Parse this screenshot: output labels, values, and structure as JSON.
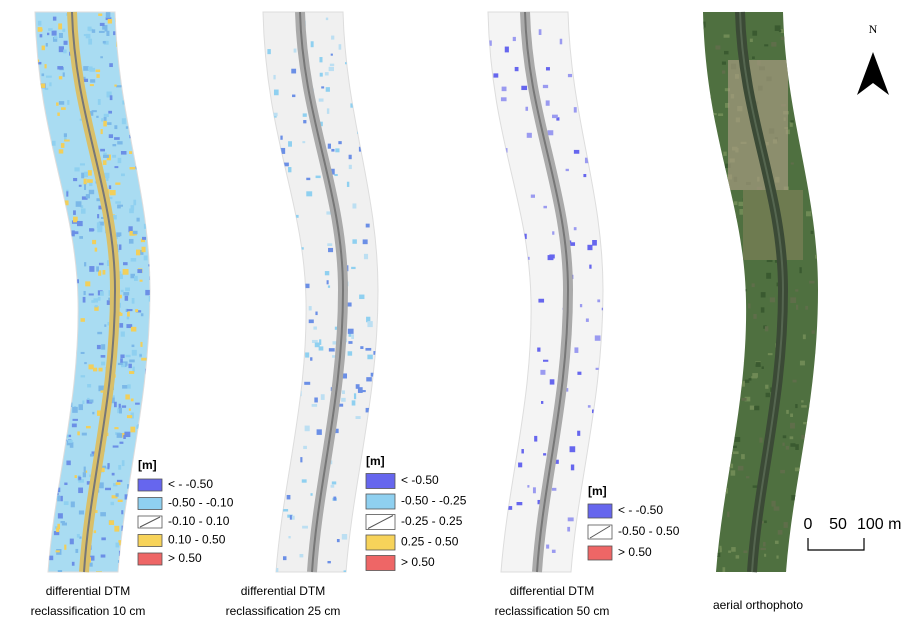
{
  "panels": [
    {
      "caption": [
        "differential DTM",
        "reclassification 10 cm"
      ],
      "legend": {
        "title": "[m]",
        "items": [
          {
            "label": "< - -0.50",
            "color": "#6666ee"
          },
          {
            "label": "-0.50 - -0.10",
            "color": "#8fd0f0"
          },
          {
            "label": "-0.10 - 0.10",
            "color": "#ffffff"
          },
          {
            "label": "0.10 - 0.50",
            "color": "#f7d35a"
          },
          {
            "label": "> 0.50",
            "color": "#ee6666"
          }
        ]
      }
    },
    {
      "caption": [
        "differential DTM",
        "reclassification 25 cm"
      ],
      "legend": {
        "title": "[m]",
        "items": [
          {
            "label": "< -0.50",
            "color": "#6666ee"
          },
          {
            "label": "-0.50 - -0.25",
            "color": "#8fd0f0"
          },
          {
            "label": "-0.25 - 0.25",
            "color": "#ffffff"
          },
          {
            "label": "0.25 - 0.50",
            "color": "#f7d35a"
          },
          {
            "label": "> 0.50",
            "color": "#ee6666"
          }
        ]
      }
    },
    {
      "caption": [
        "differential DTM",
        "reclassification 50 cm"
      ],
      "legend": {
        "title": "[m]",
        "items": [
          {
            "label": "< - -0.50",
            "color": "#6666ee"
          },
          {
            "label": "-0.50 - 0.50",
            "color": "#ffffff"
          },
          {
            "label": "> 0.50",
            "color": "#ee6666"
          }
        ]
      }
    },
    {
      "caption": [
        "aerial orthophoto"
      ]
    }
  ],
  "north": "N",
  "scale_bar": [
    "0",
    "50",
    "100 m"
  ]
}
